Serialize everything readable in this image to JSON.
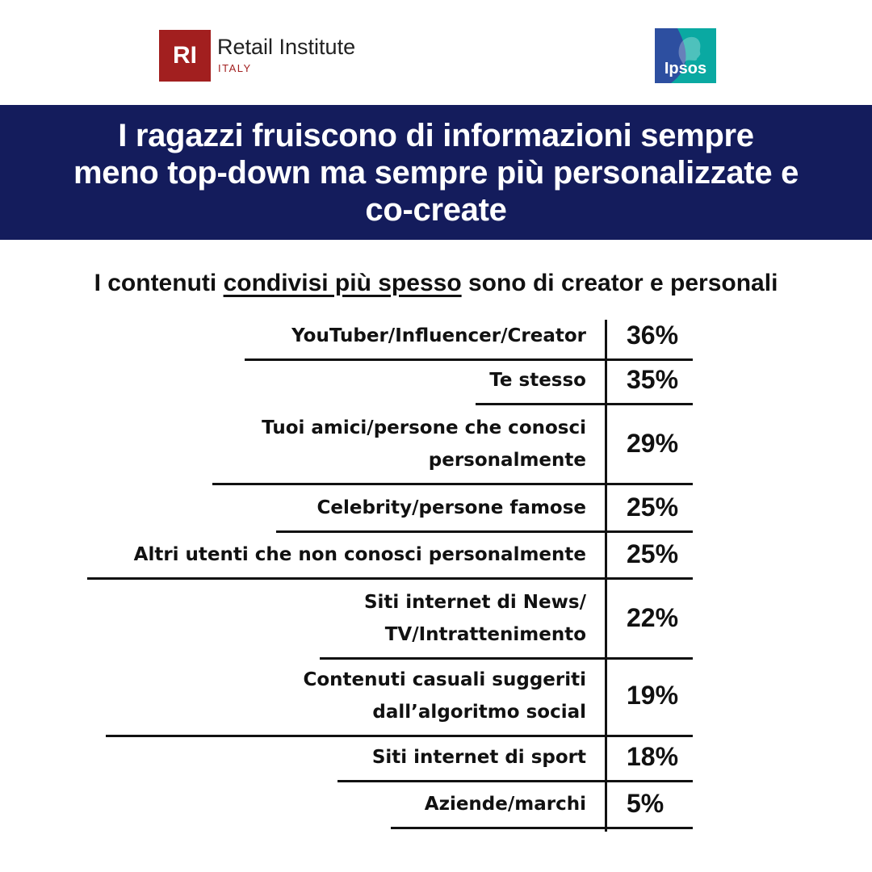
{
  "header": {
    "ri_logo": {
      "mark": "RI",
      "name": "Retail Institute",
      "subname": "ITALY"
    },
    "ipsos_logo": {
      "text": "Ipsos"
    }
  },
  "banner": {
    "title": "I ragazzi fruiscono di informazioni sempre meno top-down ma sempre più personalizzate e co-create"
  },
  "subtitle": {
    "before": "I contenuti ",
    "underlined": "condivisi più spesso",
    "after": " sono di creator e personali"
  },
  "colors": {
    "banner_bg": "#141c5c",
    "ri_red": "#a21f1f",
    "ipsos_blue": "#2d4fa0",
    "ipsos_teal": "#0aa9a2",
    "text": "#111111"
  },
  "chart_data": {
    "type": "table",
    "title": "I contenuti condivisi più spesso sono di creator e personali",
    "unit": "%",
    "categories": [
      "YouTuber/Influencer/Creator",
      "Te stesso",
      "Tuoi amici/persone che conosci personalmente",
      "Celebrity/persone famose",
      "Altri utenti che non conosci personalmente",
      "Siti internet di News/ TV/Intrattenimento",
      "Contenuti casuali suggeriti dall’algoritmo social",
      "Siti internet di sport",
      "Aziende/marchi"
    ],
    "values": [
      36,
      35,
      29,
      25,
      25,
      22,
      19,
      18,
      5
    ],
    "value_labels": [
      "36%",
      "35%",
      "29%",
      "25%",
      "25%",
      "22%",
      "19%",
      "18%",
      "5%"
    ]
  }
}
